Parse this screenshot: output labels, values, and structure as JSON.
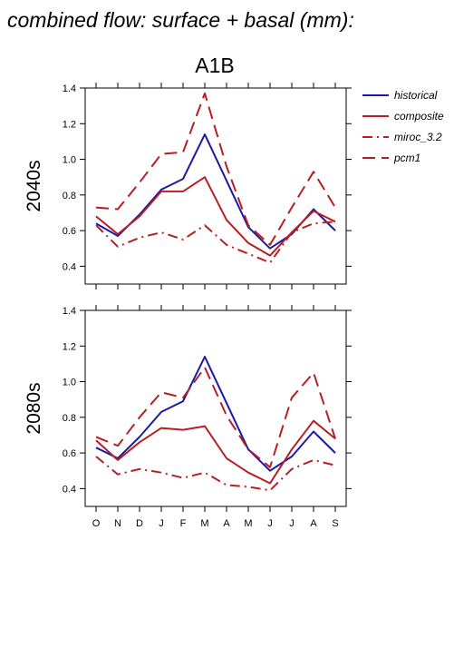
{
  "page_title": "combined flow: surface + basal (mm):",
  "scenario_title": "A1B",
  "colors": {
    "historical": "#1a1aa6",
    "scenario": "#b51f24",
    "axis": "#000000"
  },
  "legend": [
    {
      "name": "historical",
      "color": "#1a1aa6",
      "style": "solid"
    },
    {
      "name": "composite",
      "color": "#b51f24",
      "style": "solid"
    },
    {
      "name": "miroc_3.2",
      "color": "#b51f24",
      "style": "dashdot"
    },
    {
      "name": "pcm1",
      "color": "#b51f24",
      "style": "dashed"
    }
  ],
  "chart_data": [
    {
      "type": "line",
      "ylabel": "2040s",
      "ylim": [
        0.3,
        1.4
      ],
      "yticks": [
        "0.4",
        "0.6",
        "0.8",
        "1.0",
        "1.2",
        "1.4"
      ],
      "categories": [
        "O",
        "N",
        "D",
        "J",
        "F",
        "M",
        "A",
        "M",
        "J",
        "J",
        "A",
        "S"
      ],
      "series": [
        {
          "name": "historical",
          "style": "solid",
          "color": "#1a1aa6",
          "values": [
            0.64,
            0.57,
            0.69,
            0.83,
            0.89,
            1.14,
            0.88,
            0.62,
            0.5,
            0.58,
            0.72,
            0.6
          ]
        },
        {
          "name": "composite",
          "style": "solid",
          "color": "#b51f24",
          "values": [
            0.68,
            0.58,
            0.68,
            0.82,
            0.82,
            0.9,
            0.66,
            0.53,
            0.46,
            0.59,
            0.71,
            0.65
          ]
        },
        {
          "name": "miroc_3.2",
          "style": "dashdot",
          "color": "#b51f24",
          "values": [
            0.63,
            0.51,
            0.56,
            0.59,
            0.55,
            0.63,
            0.52,
            0.47,
            0.42,
            0.59,
            0.64,
            0.65
          ]
        },
        {
          "name": "pcm1",
          "style": "dashed",
          "color": "#b51f24",
          "values": [
            0.73,
            0.72,
            0.87,
            1.03,
            1.04,
            1.37,
            0.96,
            0.63,
            0.52,
            0.73,
            0.93,
            0.73
          ]
        }
      ],
      "xticks_shown": false
    },
    {
      "type": "line",
      "ylabel": "2080s",
      "ylim": [
        0.3,
        1.4
      ],
      "yticks": [
        "0.4",
        "0.6",
        "0.8",
        "1.0",
        "1.2",
        "1.4"
      ],
      "categories": [
        "O",
        "N",
        "D",
        "J",
        "F",
        "M",
        "A",
        "M",
        "J",
        "J",
        "A",
        "S"
      ],
      "series": [
        {
          "name": "historical",
          "style": "solid",
          "color": "#1a1aa6",
          "values": [
            0.63,
            0.57,
            0.69,
            0.83,
            0.89,
            1.14,
            0.88,
            0.62,
            0.5,
            0.58,
            0.72,
            0.6
          ]
        },
        {
          "name": "composite",
          "style": "solid",
          "color": "#b51f24",
          "values": [
            0.67,
            0.56,
            0.66,
            0.74,
            0.73,
            0.75,
            0.57,
            0.49,
            0.43,
            0.62,
            0.78,
            0.68
          ]
        },
        {
          "name": "miroc_3.2",
          "style": "dashdot",
          "color": "#b51f24",
          "values": [
            0.58,
            0.48,
            0.51,
            0.49,
            0.46,
            0.49,
            0.42,
            0.41,
            0.39,
            0.51,
            0.56,
            0.53
          ]
        },
        {
          "name": "pcm1",
          "style": "dashed",
          "color": "#b51f24",
          "values": [
            0.69,
            0.64,
            0.8,
            0.94,
            0.91,
            1.08,
            0.81,
            0.62,
            0.52,
            0.91,
            1.05,
            0.68
          ]
        }
      ],
      "xticks_shown": true
    }
  ]
}
